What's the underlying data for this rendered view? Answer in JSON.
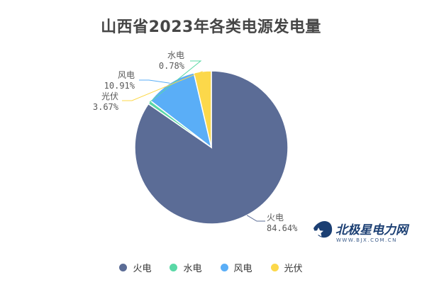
{
  "chart_data": {
    "type": "pie",
    "title": "山西省2023年各类电源发电量",
    "slices": [
      {
        "name": "火电",
        "value": 84.64,
        "label": "84.64%",
        "color": "#5b6c96"
      },
      {
        "name": "水电",
        "value": 0.78,
        "label": "0.78%",
        "color": "#5ad8a6"
      },
      {
        "name": "风电",
        "value": 10.91,
        "label": "10.91%",
        "color": "#5aaef7"
      },
      {
        "name": "光伏",
        "value": 3.67,
        "label": "3.67%",
        "color": "#fcd84a"
      }
    ],
    "legend_position": "bottom"
  },
  "watermark": {
    "text": "北极星电力网",
    "url": "WWW.BJX.COM.CN"
  }
}
